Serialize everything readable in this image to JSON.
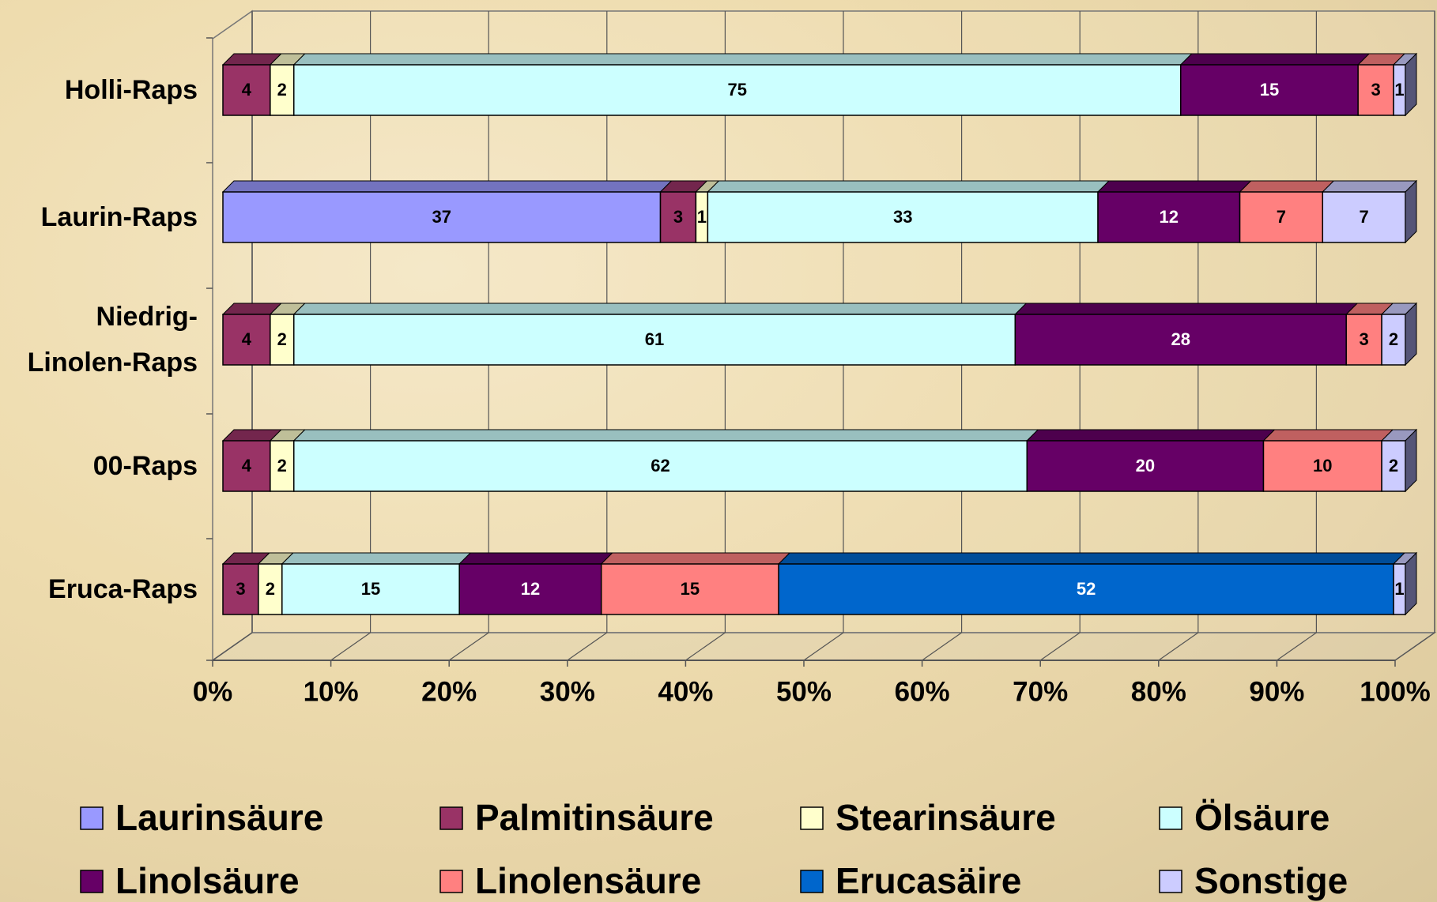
{
  "chart_data": {
    "type": "bar",
    "orientation": "horizontal",
    "stacked": true,
    "categories": [
      "Holli-Raps",
      "Laurin-Raps",
      "Niedrig-\nLinolen-Raps",
      "00-Raps",
      "Eruca-Raps"
    ],
    "series": [
      {
        "name": "Laurinsäure",
        "color": "#9999ff",
        "values": [
          null,
          37,
          null,
          null,
          null
        ]
      },
      {
        "name": "Palmitinsäure",
        "color": "#993366",
        "values": [
          4,
          3,
          4,
          4,
          3
        ]
      },
      {
        "name": "Stearinsäure",
        "color": "#ffffcc",
        "values": [
          2,
          1,
          2,
          2,
          2
        ]
      },
      {
        "name": "Ölsäure",
        "color": "#ccffff",
        "values": [
          75,
          33,
          61,
          62,
          15
        ]
      },
      {
        "name": "Linolsäure",
        "color": "#660066",
        "values": [
          15,
          12,
          28,
          20,
          12
        ]
      },
      {
        "name": "Linolensäure",
        "color": "#ff8080",
        "values": [
          3,
          7,
          3,
          10,
          15
        ]
      },
      {
        "name": "Erucasäire",
        "color": "#0066cc",
        "values": [
          null,
          null,
          null,
          null,
          52
        ]
      },
      {
        "name": "Sonstige",
        "color": "#ccccff",
        "values": [
          1,
          7,
          2,
          2,
          1
        ]
      }
    ],
    "xlim": [
      0,
      100
    ],
    "xticks": [
      {
        "value": 0,
        "label": "0%"
      },
      {
        "value": 10,
        "label": "10%"
      },
      {
        "value": 20,
        "label": "20%"
      },
      {
        "value": 30,
        "label": "30%"
      },
      {
        "value": 40,
        "label": "40%"
      },
      {
        "value": 50,
        "label": "50%"
      },
      {
        "value": 60,
        "label": "60%"
      },
      {
        "value": 70,
        "label": "70%"
      },
      {
        "value": 80,
        "label": "80%"
      },
      {
        "value": 90,
        "label": "90%"
      },
      {
        "value": 100,
        "label": "100%"
      }
    ],
    "grid": true,
    "legend": "bottom"
  }
}
